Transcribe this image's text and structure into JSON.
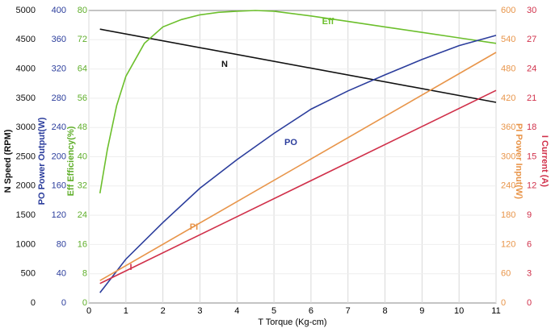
{
  "chart_data": {
    "type": "line",
    "x_label": "T  Torque (Kg-cm)",
    "xlim": [
      0,
      11
    ],
    "xticks": [
      0,
      1,
      2,
      3,
      4,
      5,
      6,
      7,
      8,
      9,
      10,
      11
    ],
    "grid": true,
    "axes": [
      {
        "id": "N",
        "label": "N  Speed (RPM)",
        "color": "#111111",
        "side": "left",
        "lim": [
          0,
          5000
        ],
        "ticks": [
          0,
          500,
          1000,
          1500,
          2000,
          2500,
          3000,
          3500,
          4000,
          4500,
          5000
        ]
      },
      {
        "id": "PO",
        "label": "PO  Power Output(W)",
        "color": "#2b3d9c",
        "side": "left",
        "lim": [
          0,
          400
        ],
        "ticks": [
          0,
          40,
          80,
          120,
          160,
          200,
          240,
          280,
          320,
          360,
          400
        ]
      },
      {
        "id": "Eff",
        "label": "Eff  Efficiency(%)",
        "color": "#5fae2a",
        "side": "left",
        "lim": [
          0,
          80
        ],
        "ticks": [
          0,
          8,
          16,
          24,
          32,
          40,
          48,
          56,
          64,
          72,
          80
        ]
      },
      {
        "id": "PI",
        "label": "PI  Power Input(W)",
        "color": "#e8954a",
        "side": "right",
        "lim": [
          0,
          600
        ],
        "ticks": [
          0,
          60,
          120,
          180,
          240,
          300,
          360,
          420,
          480,
          540,
          600
        ]
      },
      {
        "id": "I",
        "label": "I  Current (A)",
        "color": "#d0304a",
        "side": "right",
        "lim": [
          0,
          30
        ],
        "ticks": [
          0,
          3,
          6,
          9,
          12,
          15,
          18,
          21,
          24,
          27,
          30
        ]
      }
    ],
    "series": [
      {
        "name": "N",
        "axis": "N",
        "color": "#111111",
        "x": [
          0.3,
          11
        ],
        "values": [
          4680,
          3430
        ]
      },
      {
        "name": "Eff",
        "axis": "Eff",
        "color": "#6cbf2c",
        "x": [
          0.3,
          0.5,
          0.75,
          1,
          1.5,
          2,
          2.5,
          3,
          3.5,
          4,
          4.5,
          5,
          6,
          7,
          8,
          9,
          10,
          11
        ],
        "values": [
          30,
          42,
          54,
          62,
          71,
          75.5,
          77.5,
          78.8,
          79.5,
          79.8,
          80,
          79.8,
          78.5,
          77,
          75.5,
          74,
          72.5,
          71
        ]
      },
      {
        "name": "PO",
        "axis": "PO",
        "color": "#2b3d9c",
        "x": [
          0.3,
          1,
          2,
          3,
          4,
          5,
          6,
          7,
          8,
          9,
          10,
          11
        ],
        "values": [
          14,
          60,
          110,
          157,
          196,
          232,
          265,
          290,
          312,
          333,
          352,
          366
        ]
      },
      {
        "name": "PI",
        "axis": "PI",
        "color": "#e8954a",
        "x": [
          0.3,
          11
        ],
        "values": [
          46,
          514
        ]
      },
      {
        "name": "I",
        "axis": "I",
        "color": "#d0304a",
        "x": [
          0.3,
          11
        ],
        "values": [
          2.0,
          21.8
        ]
      }
    ]
  }
}
